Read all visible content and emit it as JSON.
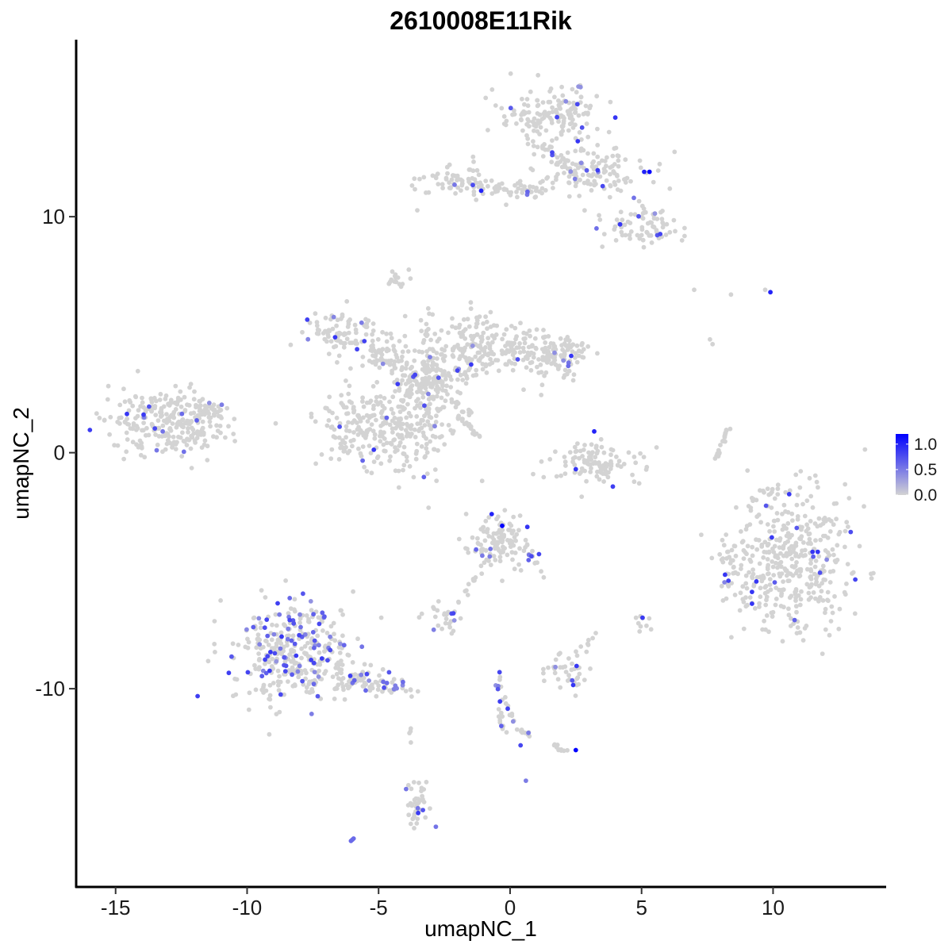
{
  "chart_data": {
    "type": "scatter",
    "title": "2610008E11Rik",
    "xlabel": "umapNC_1",
    "ylabel": "umapNC_2",
    "xlim": [
      -16.5,
      14.3
    ],
    "ylim": [
      -18.4,
      17.5
    ],
    "xticks": [
      -15,
      -10,
      -5,
      0,
      5,
      10
    ],
    "xtick_labels": [
      "-15",
      "-10",
      "-5",
      "0",
      "5",
      "10"
    ],
    "yticks": [
      -10,
      0,
      10
    ],
    "ytick_labels": [
      "-10",
      "0",
      "10"
    ],
    "grid": false,
    "legend_position": "right",
    "color_scale": {
      "low": "#d3d3d3",
      "high": "#0000ff",
      "min": 0.0,
      "max": 1.2,
      "ticks": [
        0.0,
        0.5,
        1.0
      ],
      "tick_labels": [
        "0.0",
        "0.5",
        "1.0"
      ]
    },
    "clusters": [
      {
        "cx": -13.1,
        "cy": 1.2,
        "sx": 1.2,
        "sy": 0.7,
        "n": 230,
        "frac": 0.05
      },
      {
        "cx": -11.8,
        "cy": 1.6,
        "sx": 0.7,
        "sy": 0.5,
        "n": 70,
        "frac": 0.0
      },
      {
        "cx": -5.3,
        "cy": 1.1,
        "sx": 1.1,
        "sy": 0.8,
        "n": 230,
        "frac": 0.03
      },
      {
        "cx": -3.3,
        "cy": 2.0,
        "sx": 0.6,
        "sy": 1.4,
        "n": 120,
        "frac": 0.04
      },
      {
        "cx": -6.5,
        "cy": 5.0,
        "sx": 0.8,
        "sy": 0.5,
        "n": 70,
        "frac": 0.07
      },
      {
        "cx": -4.8,
        "cy": 4.2,
        "sx": 0.5,
        "sy": 0.4,
        "n": 50,
        "frac": 0.03
      },
      {
        "cx": -3.0,
        "cy": 3.2,
        "sx": 0.6,
        "sy": 0.5,
        "n": 120,
        "frac": 0.02
      },
      {
        "cx": -1.4,
        "cy": 4.5,
        "sx": 0.7,
        "sy": 0.8,
        "n": 130,
        "frac": 0.03
      },
      {
        "cx": 0.6,
        "cy": 4.4,
        "sx": 1.1,
        "sy": 0.5,
        "n": 120,
        "frac": 0.02
      },
      {
        "cx": 2.0,
        "cy": 4.1,
        "sx": 0.5,
        "sy": 0.4,
        "n": 60,
        "frac": 0.04
      },
      {
        "cx": -4.4,
        "cy": 7.3,
        "sx": 0.2,
        "sy": 0.2,
        "n": 15,
        "frac": 0.0
      },
      {
        "cx": 1.6,
        "cy": 14.2,
        "sx": 0.9,
        "sy": 0.7,
        "n": 170,
        "frac": 0.06
      },
      {
        "cx": 3.4,
        "cy": 12.0,
        "sx": 1.1,
        "sy": 0.5,
        "n": 110,
        "frac": 0.08
      },
      {
        "cx": 5.0,
        "cy": 9.6,
        "sx": 0.8,
        "sy": 0.5,
        "n": 80,
        "frac": 0.05
      },
      {
        "cx": -2.1,
        "cy": 11.5,
        "sx": 0.7,
        "sy": 0.4,
        "n": 60,
        "frac": 0.05
      },
      {
        "cx": 0.9,
        "cy": 11.2,
        "sx": 0.8,
        "sy": 0.3,
        "n": 30,
        "frac": 0.04
      },
      {
        "cx": 3.3,
        "cy": -0.4,
        "sx": 0.8,
        "sy": 0.5,
        "n": 110,
        "frac": 0.02
      },
      {
        "cx": 10.6,
        "cy": -4.6,
        "sx": 1.2,
        "sy": 1.5,
        "n": 420,
        "frac": 0.03
      },
      {
        "cx": -8.2,
        "cy": -8.5,
        "sx": 1.1,
        "sy": 1.1,
        "n": 360,
        "frac": 0.2
      },
      {
        "cx": -5.8,
        "cy": -9.7,
        "sx": 1.0,
        "sy": 0.4,
        "n": 50,
        "frac": 0.12
      },
      {
        "cx": -0.5,
        "cy": -3.8,
        "sx": 0.6,
        "sy": 0.6,
        "n": 110,
        "frac": 0.04
      },
      {
        "cx": -2.5,
        "cy": -7.0,
        "sx": 0.4,
        "sy": 0.3,
        "n": 25,
        "frac": 0.1
      },
      {
        "cx": 2.3,
        "cy": -9.3,
        "sx": 0.5,
        "sy": 0.4,
        "n": 40,
        "frac": 0.1
      },
      {
        "cx": -3.5,
        "cy": -15.0,
        "sx": 0.3,
        "sy": 0.5,
        "n": 30,
        "frac": 0.12
      },
      {
        "cx": 8.4,
        "cy": -5.0,
        "sx": 0.2,
        "sy": 0.6,
        "n": 20,
        "frac": 0.05
      },
      {
        "cx": 5.1,
        "cy": -7.2,
        "sx": 0.2,
        "sy": 0.2,
        "n": 10,
        "frac": 0.2
      }
    ],
    "paths": [
      {
        "from": [
          -8.0,
          5.6
        ],
        "to": [
          -3.0,
          3.0
        ],
        "n": 40,
        "spread": 0.3,
        "frac": 0.05
      },
      {
        "from": [
          -1.5,
          1.6
        ],
        "to": [
          -3.0,
          3.0
        ],
        "n": 20,
        "spread": 0.15,
        "frac": 0.0
      },
      {
        "from": [
          -1.2,
          0.7
        ],
        "to": [
          -2.0,
          1.6
        ],
        "n": 20,
        "spread": 0.12,
        "frac": 0.0
      },
      {
        "from": [
          -3.2,
          6.7
        ],
        "to": [
          -3.0,
          3.0
        ],
        "n": 20,
        "spread": 0.2,
        "frac": 0.03
      },
      {
        "from": [
          -2.0,
          11.4
        ],
        "to": [
          1.6,
          11.0
        ],
        "n": 30,
        "spread": 0.2,
        "frac": 0.03
      },
      {
        "from": [
          1.2,
          13.0
        ],
        "to": [
          3.0,
          11.2
        ],
        "n": 25,
        "spread": 0.3,
        "frac": 0.03
      },
      {
        "from": [
          -0.9,
          -4.5
        ],
        "to": [
          -2.2,
          -6.8
        ],
        "n": 15,
        "spread": 0.15,
        "frac": 0.2
      },
      {
        "from": [
          0.6,
          -3.9
        ],
        "to": [
          1.3,
          -5.4
        ],
        "n": 15,
        "spread": 0.12,
        "frac": 0.25
      },
      {
        "from": [
          -7.0,
          -9.1
        ],
        "to": [
          -3.7,
          -10.3
        ],
        "n": 40,
        "spread": 0.3,
        "frac": 0.1
      },
      {
        "from": [
          -0.5,
          -9.5
        ],
        "to": [
          -0.2,
          -12.0
        ],
        "n": 20,
        "spread": 0.15,
        "frac": 0.15
      },
      {
        "from": [
          0.2,
          -11.7
        ],
        "to": [
          2.3,
          -12.7
        ],
        "n": 20,
        "spread": 0.15,
        "frac": 0.1
      },
      {
        "from": [
          8.3,
          1.1
        ],
        "to": [
          7.8,
          -0.3
        ],
        "n": 20,
        "spread": 0.1,
        "frac": 0.0
      },
      {
        "from": [
          10.5,
          -1.5
        ],
        "to": [
          9.0,
          -2.0
        ],
        "n": 15,
        "spread": 0.3,
        "frac": 0.0
      },
      {
        "from": [
          2.5,
          -8.5
        ],
        "to": [
          3.4,
          -7.5
        ],
        "n": 8,
        "spread": 0.1,
        "frac": 0.0
      },
      {
        "from": [
          -0.2,
          -10.5
        ],
        "to": [
          0.2,
          -11.5
        ],
        "n": 8,
        "spread": 0.1,
        "frac": 0.2
      },
      {
        "from": [
          -3.8,
          -11.5
        ],
        "to": [
          -3.8,
          -12.3
        ],
        "n": 4,
        "spread": 0.05,
        "frac": 0.0
      },
      {
        "from": [
          -3.2,
          -13.8
        ],
        "to": [
          -3.6,
          -15.3
        ],
        "n": 12,
        "spread": 0.1,
        "frac": 0.1
      }
    ],
    "points": [
      {
        "x": -6.0,
        "y": -16.4,
        "value": 0.6
      },
      {
        "x": -6.05,
        "y": -16.45,
        "value": 0.6
      },
      {
        "x": -5.95,
        "y": -16.35,
        "value": 0.6
      },
      {
        "x": 0.6,
        "y": -13.9,
        "value": 0.5
      },
      {
        "x": 9.9,
        "y": 6.8,
        "value": 1.0
      },
      {
        "x": 9.7,
        "y": 6.9,
        "value": 0.0
      },
      {
        "x": 8.4,
        "y": 6.7,
        "value": 0.0
      },
      {
        "x": 7.0,
        "y": 6.9,
        "value": 0.0
      },
      {
        "x": 7.6,
        "y": 4.8,
        "value": 0.0
      },
      {
        "x": 7.7,
        "y": 4.6,
        "value": 0.0
      },
      {
        "x": 5.3,
        "y": 11.9,
        "value": 1.2
      },
      {
        "x": 5.1,
        "y": 11.9,
        "value": 1.0
      },
      {
        "x": 4.0,
        "y": 14.2,
        "value": 0.9
      },
      {
        "x": 2.5,
        "y": -12.6,
        "value": 1.2
      },
      {
        "x": -0.3,
        "y": -3.1,
        "value": 1.2
      },
      {
        "x": -0.7,
        "y": -2.6,
        "value": 1.0
      },
      {
        "x": 3.2,
        "y": 0.9,
        "value": 1.0
      },
      {
        "x": 2.5,
        "y": -0.7,
        "value": 0.9
      },
      {
        "x": -1.1,
        "y": 11.1,
        "value": 1.0
      },
      {
        "x": 9.2,
        "y": -6.4,
        "value": 0.9
      },
      {
        "x": 9.2,
        "y": -5.9,
        "value": 0.9
      },
      {
        "x": 11.5,
        "y": -4.2,
        "value": 0.9
      },
      {
        "x": 11.7,
        "y": -4.2,
        "value": 0.9
      },
      {
        "x": 0.4,
        "y": -12.4,
        "value": 0.8
      },
      {
        "x": 1.1,
        "y": -4.3,
        "value": 0.8
      },
      {
        "x": -0.4,
        "y": -9.3,
        "value": 0.8
      }
    ]
  }
}
